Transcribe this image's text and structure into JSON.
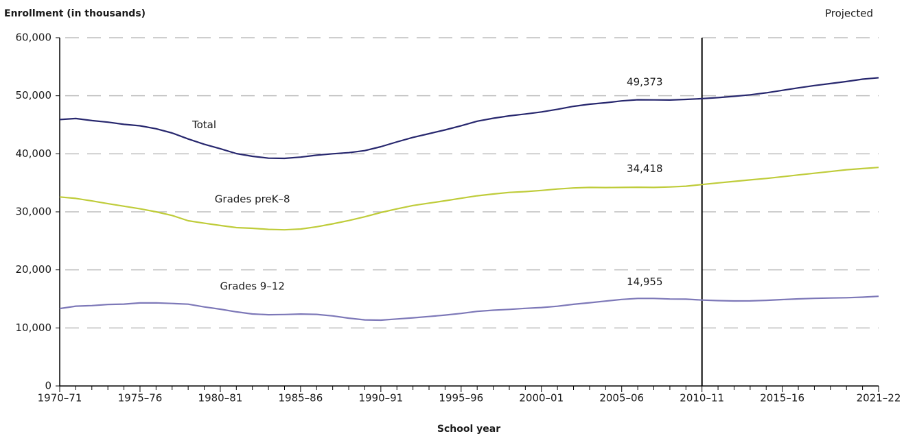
{
  "chart_data": {
    "type": "line",
    "y_label": "Enrollment (in thousands)",
    "x_label": "School year",
    "annotation": "Projected",
    "projected_from": "2010–11",
    "categories": [
      "1970–71",
      null,
      null,
      null,
      null,
      "1975–76",
      null,
      null,
      null,
      null,
      "1980–81",
      null,
      null,
      null,
      null,
      "1985–86",
      null,
      null,
      null,
      null,
      "1990–91",
      null,
      null,
      null,
      null,
      "1995–96",
      null,
      null,
      null,
      null,
      "2000–01",
      null,
      null,
      null,
      null,
      "2005–06",
      null,
      null,
      null,
      null,
      "2010–11",
      null,
      null,
      null,
      null,
      "2015–16",
      null,
      null,
      null,
      null,
      null,
      "2021–22"
    ],
    "ylim": [
      0,
      60000
    ],
    "yticks": [
      0,
      {
        "value": 10000,
        "label": "10,000"
      },
      {
        "value": 20000,
        "label": "20,000"
      },
      {
        "value": 30000,
        "label": "30,000"
      },
      {
        "value": 40000,
        "label": "40,000"
      },
      {
        "value": 50000,
        "label": "50,000"
      },
      {
        "value": 60000,
        "label": "60,000"
      }
    ],
    "grid": true,
    "series": [
      {
        "name": "Total",
        "color": "#27276e",
        "values": [
          45894,
          46071,
          45726,
          45445,
          45073,
          44819,
          44311,
          43577,
          42551,
          41651,
          40877,
          40044,
          39566,
          39252,
          39208,
          39422,
          39753,
          40008,
          40189,
          40543,
          41217,
          42047,
          42823,
          43465,
          44111,
          44840,
          45611,
          46127,
          46539,
          46857,
          47204,
          47672,
          48183,
          48540,
          48795,
          49113,
          49316,
          49293,
          49266,
          49373,
          49500,
          49680,
          49900,
          50160,
          50500,
          50930,
          51350,
          51750,
          52100,
          52450,
          52850,
          53100
        ],
        "value_labels": [
          null,
          null,
          null,
          null,
          null,
          null,
          null,
          null,
          null,
          null,
          null,
          null,
          null,
          null,
          null,
          null,
          null,
          null,
          null,
          null,
          null,
          null,
          null,
          null,
          null,
          null,
          null,
          null,
          null,
          null,
          null,
          null,
          null,
          null,
          null,
          null,
          null,
          null,
          null,
          "49,373",
          null,
          null,
          null,
          null,
          null,
          null,
          null,
          null,
          null,
          null,
          null,
          null
        ]
      },
      {
        "name": "Grades preK–8",
        "color": "#bfcc3a",
        "values": [
          32558,
          32318,
          31879,
          31401,
          30971,
          30515,
          29997,
          29375,
          28463,
          28034,
          27647,
          27280,
          27161,
          26981,
          26905,
          27034,
          27420,
          27933,
          28501,
          29152,
          29878,
          30506,
          31088,
          31504,
          31898,
          32341,
          32764,
          33073,
          33346,
          33488,
          33686,
          33936,
          34114,
          34201,
          34178,
          34204,
          34235,
          34205,
          34286,
          34418,
          34700,
          34980,
          35250,
          35500,
          35750,
          36050,
          36350,
          36650,
          36950,
          37250,
          37450,
          37650
        ],
        "value_labels": [
          null,
          null,
          null,
          null,
          null,
          null,
          null,
          null,
          null,
          null,
          null,
          null,
          null,
          null,
          null,
          null,
          null,
          null,
          null,
          null,
          null,
          null,
          null,
          null,
          null,
          null,
          null,
          null,
          null,
          null,
          null,
          null,
          null,
          null,
          null,
          null,
          null,
          null,
          null,
          "34,418",
          null,
          null,
          null,
          null,
          null,
          null,
          null,
          null,
          null,
          null,
          null,
          null
        ]
      },
      {
        "name": "Grades 9–12",
        "color": "#7d78b8",
        "values": [
          13336,
          13753,
          13848,
          14044,
          14103,
          14304,
          14314,
          14203,
          14088,
          13616,
          13231,
          12764,
          12405,
          12271,
          12304,
          12388,
          12333,
          12076,
          11687,
          11390,
          11338,
          11541,
          11735,
          11961,
          12213,
          12500,
          12847,
          13054,
          13193,
          13369,
          13517,
          13736,
          14069,
          14339,
          14618,
          14909,
          15081,
          15087,
          14980,
          14955,
          14800,
          14700,
          14650,
          14660,
          14750,
          14880,
          15000,
          15100,
          15150,
          15200,
          15300,
          15450
        ],
        "value_labels": [
          null,
          null,
          null,
          null,
          null,
          null,
          null,
          null,
          null,
          null,
          null,
          null,
          null,
          null,
          null,
          null,
          null,
          null,
          null,
          null,
          null,
          null,
          null,
          null,
          null,
          null,
          null,
          null,
          null,
          null,
          null,
          null,
          null,
          null,
          null,
          null,
          null,
          null,
          null,
          "14,955",
          null,
          null,
          null,
          null,
          null,
          null,
          null,
          null,
          null,
          null,
          null,
          null
        ]
      }
    ]
  }
}
